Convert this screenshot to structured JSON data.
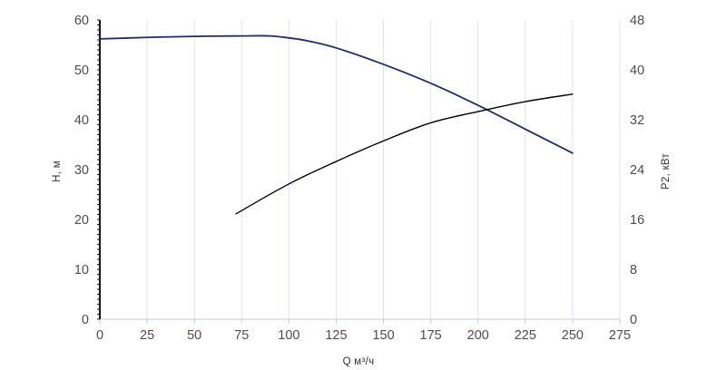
{
  "chart_data": {
    "type": "line",
    "xlabel": "Q м³/ч",
    "ylabel_left": "H, м",
    "ylabel_right": "P2, кВт",
    "xlim": [
      0,
      275
    ],
    "ylim_left": [
      0,
      60
    ],
    "ylim_right": [
      0,
      48
    ],
    "xticks": [
      0,
      25,
      50,
      75,
      100,
      125,
      150,
      175,
      200,
      225,
      250,
      275
    ],
    "yticks_left": [
      0,
      10,
      20,
      30,
      40,
      50,
      60
    ],
    "yticks_right": [
      0,
      8,
      16,
      24,
      32,
      40,
      48
    ],
    "grid": "vertical",
    "series": [
      {
        "axis": "left",
        "color": "#1f2d6b",
        "x": [
          0,
          25,
          50,
          75,
          90,
          100,
          110,
          125,
          150,
          175,
          200,
          225,
          250
        ],
        "y": [
          56.2,
          56.5,
          56.7,
          56.8,
          56.8,
          56.4,
          55.8,
          54.4,
          51.1,
          47.3,
          42.9,
          38.1,
          33.3
        ]
      },
      {
        "axis": "right",
        "color": "#000000",
        "x": [
          72,
          100,
          125,
          150,
          175,
          200,
          225,
          250
        ],
        "y": [
          16.9,
          21.7,
          25.3,
          28.6,
          31.5,
          33.3,
          34.9,
          36.1
        ]
      }
    ]
  }
}
